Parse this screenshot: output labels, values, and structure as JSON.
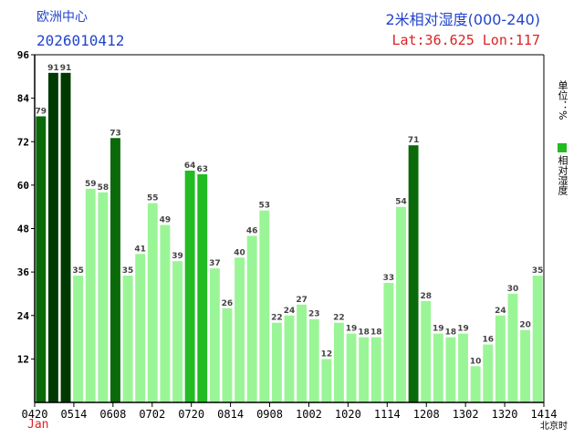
{
  "header": {
    "org": "欧洲中心",
    "run": "2026010412",
    "title": "2米相对湿度(000-240)",
    "location": "Lat:36.625  Lon:117"
  },
  "side": {
    "unit": "单位：%",
    "legend": "相对湿度"
  },
  "colors": {
    "c1": "#003a00",
    "c2": "#0a6a0a",
    "c3": "#22bb22",
    "c4": "#9af596",
    "text": "#444444",
    "blue": "#2244cc",
    "red": "#dd2222"
  },
  "chart_data": {
    "type": "bar",
    "title": "2米相对湿度(000-240)",
    "xlabel": "北京时",
    "ylabel": "单位：%",
    "ylim": [
      0,
      96
    ],
    "yticks": [
      12,
      24,
      36,
      48,
      60,
      72,
      84,
      96
    ],
    "month_label": "Jan",
    "x_tick_labels": [
      "0420",
      "0514",
      "0608",
      "0702",
      "0720",
      "0814",
      "0908",
      "1002",
      "1020",
      "1114",
      "1208",
      "1302",
      "1320",
      "1414"
    ],
    "values": [
      79,
      91,
      91,
      35,
      59,
      58,
      73,
      35,
      41,
      55,
      49,
      39,
      64,
      63,
      37,
      26,
      40,
      46,
      53,
      22,
      24,
      27,
      23,
      12,
      22,
      19,
      18,
      18,
      33,
      54,
      71,
      28,
      19,
      18,
      19,
      10,
      16,
      24,
      30,
      20,
      35
    ],
    "grid": false,
    "legend_position": "right"
  }
}
